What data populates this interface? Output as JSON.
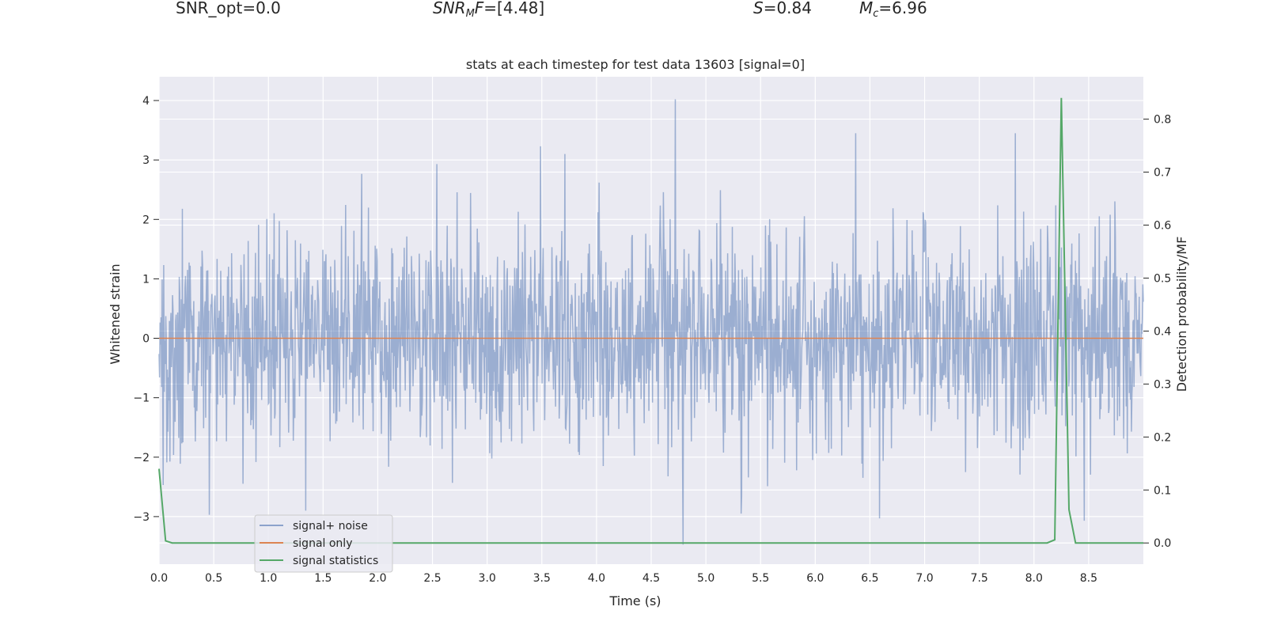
{
  "header": {
    "snr_opt": "SNR_opt=0.0",
    "snr_mf_base": "SNR",
    "snr_mf_sub": "M",
    "snr_mf_rest": "F",
    "snr_mf_value": "=[4.48]",
    "s_symbol": "S",
    "s_value": "=0.84",
    "mc_symbol": "M",
    "mc_sub": "c",
    "mc_value": "=6.96"
  },
  "chart_data": {
    "type": "line",
    "title": "stats at each timestep for test data 13603 [signal=0]",
    "xlabel": "Time (s)",
    "ylabel": "Whitened strain",
    "y2label": "Detection probability/MF",
    "xlim": [
      0.0,
      9.0
    ],
    "ylim": [
      -3.8,
      4.4
    ],
    "y2lim": [
      -0.04,
      0.88
    ],
    "xticks": [
      "0.0",
      "0.5",
      "1.0",
      "1.5",
      "2.0",
      "2.5",
      "3.0",
      "3.5",
      "4.0",
      "4.5",
      "5.0",
      "5.5",
      "6.0",
      "6.5",
      "7.0",
      "7.5",
      "8.0",
      "8.5"
    ],
    "yticks": [
      "−3",
      "−2",
      "−1",
      "0",
      "1",
      "2",
      "3",
      "4"
    ],
    "y2ticks": [
      "0.0",
      "0.1",
      "0.2",
      "0.3",
      "0.4",
      "0.5",
      "0.6",
      "0.7",
      "0.8"
    ],
    "grid": true,
    "legend_position": "lower-left",
    "series": [
      {
        "name": "signal+ noise",
        "color": "#4c72b0",
        "axis": "left",
        "approx_range": [
          -3.5,
          4.05
        ],
        "typical_range": [
          -1.5,
          1.5
        ],
        "peaks": [
          {
            "x": 4.72,
            "y": 4.02
          },
          {
            "x": 4.79,
            "y": -3.47
          },
          {
            "x": 6.37,
            "y": 3.45
          },
          {
            "x": 7.83,
            "y": 3.45
          },
          {
            "x": 3.71,
            "y": 3.1
          },
          {
            "x": 2.54,
            "y": 2.93
          },
          {
            "x": 0.46,
            "y": -2.97
          },
          {
            "x": 6.59,
            "y": -3.03
          },
          {
            "x": 5.32,
            "y": -2.95
          },
          {
            "x": 8.46,
            "y": -3.07
          }
        ]
      },
      {
        "name": "signal only",
        "color": "#dd8452",
        "axis": "left",
        "x": [
          0.0,
          9.0
        ],
        "y": [
          0.0,
          0.0
        ]
      },
      {
        "name": "signal statistics",
        "color": "#55a868",
        "axis": "right",
        "x": [
          0.0,
          0.06,
          0.12,
          8.12,
          8.19,
          8.25,
          8.32,
          8.38,
          9.0
        ],
        "y": [
          0.14,
          0.004,
          0.0,
          0.0,
          0.006,
          0.84,
          0.063,
          0.0,
          0.0
        ]
      }
    ]
  }
}
